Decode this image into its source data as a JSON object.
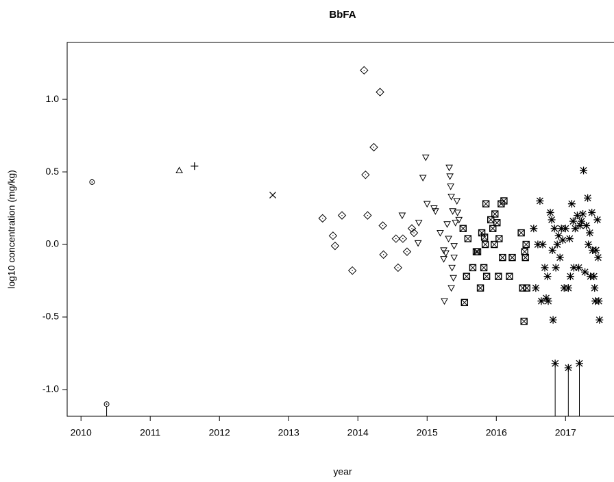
{
  "chart_data": {
    "type": "scatter",
    "title": "BbFA",
    "x_label": "year",
    "y_label": "log10 concentration (mg/kg)",
    "xlim": [
      2009.8,
      2017.7
    ],
    "ylim": [
      -1.184,
      1.392
    ],
    "xticks": [
      2010,
      2011,
      2012,
      2013,
      2014,
      2015,
      2016,
      2017
    ],
    "yticks": [
      {
        "value": -1,
        "label": "-1.0"
      },
      -0.5,
      {
        "value": 0,
        "label": "0.0"
      },
      0.5,
      {
        "value": 1,
        "label": "1.0"
      }
    ],
    "color": "#000000",
    "series": [
      {
        "symbol": "circle-dot",
        "x": [
          2010.16
        ],
        "values": [
          0.43
        ]
      },
      {
        "symbol": "circle-dot",
        "drop_line": true,
        "x": [
          2010.37
        ],
        "values": [
          -1.1
        ]
      },
      {
        "symbol": "triangle",
        "x": [
          2011.42
        ],
        "values": [
          0.51
        ]
      },
      {
        "symbol": "plus",
        "x": [
          2011.64
        ],
        "values": [
          0.54
        ]
      },
      {
        "symbol": "cross",
        "x": [
          2012.77
        ],
        "values": [
          0.34
        ]
      },
      {
        "symbol": "diamond",
        "x": [
          2013.49,
          2013.64,
          2013.67,
          2013.77,
          2013.92,
          2014.09,
          2014.11,
          2014.14,
          2014.23,
          2014.32,
          2014.36,
          2014.37,
          2014.55,
          2014.58,
          2014.65,
          2014.71,
          2014.78,
          2014.81
        ],
        "values": [
          0.18,
          0.06,
          -0.01,
          0.2,
          -0.18,
          1.2,
          0.48,
          0.2,
          0.67,
          1.05,
          0.13,
          -0.07,
          0.04,
          -0.16,
          0.04,
          -0.05,
          0.11,
          0.08
        ]
      },
      {
        "symbol": "triangle-down",
        "x": [
          2014.64,
          2014.87,
          2014.88,
          2014.94,
          2014.98,
          2015.0,
          2015.1,
          2015.12,
          2015.19,
          2015.24,
          2015.24,
          2015.25,
          2015.27,
          2015.29,
          2015.31,
          2015.32,
          2015.33,
          2015.34,
          2015.35,
          2015.36,
          2015.37,
          2015.39,
          2015.39,
          2015.41,
          2015.43,
          2015.44,
          2015.46,
          2015.35,
          2015.38
        ],
        "values": [
          0.2,
          0.01,
          0.15,
          0.46,
          0.6,
          0.28,
          0.25,
          0.23,
          0.08,
          -0.04,
          -0.1,
          -0.39,
          -0.06,
          0.14,
          0.04,
          0.53,
          0.47,
          0.4,
          0.33,
          -0.16,
          0.23,
          -0.01,
          -0.09,
          0.15,
          0.3,
          0.22,
          0.17,
          -0.3,
          -0.23
        ]
      },
      {
        "symbol": "square-x",
        "x": [
          2015.52,
          2015.54,
          2015.57,
          2015.59,
          2015.66,
          2015.71,
          2015.73,
          2015.77,
          2015.79,
          2015.82,
          2015.83,
          2015.84,
          2015.85,
          2015.86,
          2015.92,
          2015.95,
          2015.97,
          2015.98,
          2016.01,
          2016.03,
          2016.04,
          2016.07,
          2016.09,
          2016.11,
          2016.19,
          2016.23,
          2016.36,
          2016.38,
          2016.4,
          2016.41,
          2016.42,
          2016.43,
          2016.44
        ],
        "values": [
          0.11,
          -0.4,
          -0.22,
          0.04,
          -0.16,
          -0.05,
          -0.05,
          -0.3,
          0.08,
          -0.16,
          0.05,
          0.0,
          0.28,
          -0.22,
          0.17,
          0.11,
          0.0,
          0.21,
          0.15,
          -0.22,
          0.04,
          0.28,
          -0.09,
          0.3,
          -0.22,
          -0.09,
          0.08,
          -0.3,
          -0.53,
          -0.05,
          -0.09,
          0.0,
          -0.3
        ]
      },
      {
        "symbol": "asterisk",
        "x": [
          2016.54,
          2016.57,
          2016.6,
          2016.63,
          2016.65,
          2016.67,
          2016.7,
          2016.72,
          2016.74,
          2016.75,
          2016.78,
          2016.8,
          2016.81,
          2016.82,
          2016.84,
          2016.86,
          2016.88,
          2016.9,
          2016.92,
          2016.94,
          2016.96,
          2016.98,
          2017.0,
          2017.04,
          2017.06,
          2017.07,
          2017.09,
          2017.11,
          2017.12,
          2017.14,
          2017.17,
          2017.19,
          2017.21,
          2017.23,
          2017.25,
          2017.26,
          2017.28,
          2017.3,
          2017.32,
          2017.33,
          2017.35,
          2017.36,
          2017.38,
          2017.39,
          2017.41,
          2017.42,
          2017.43,
          2017.44,
          2017.46,
          2017.47,
          2017.48,
          2017.49
        ],
        "values": [
          0.11,
          -0.3,
          0.0,
          0.3,
          -0.39,
          0.0,
          -0.16,
          -0.37,
          -0.22,
          -0.39,
          0.22,
          0.17,
          -0.04,
          -0.52,
          0.11,
          -0.16,
          0.0,
          0.06,
          -0.09,
          0.11,
          0.03,
          -0.3,
          0.11,
          -0.3,
          0.04,
          -0.22,
          0.28,
          0.16,
          -0.16,
          0.11,
          0.2,
          -0.16,
          0.13,
          0.16,
          0.21,
          0.51,
          -0.19,
          0.13,
          0.32,
          0.0,
          0.08,
          -0.22,
          0.22,
          -0.04,
          -0.22,
          -0.3,
          -0.39,
          -0.04,
          0.17,
          -0.09,
          -0.39,
          -0.52
        ]
      },
      {
        "symbol": "asterisk",
        "drop_line": true,
        "x": [
          2016.85,
          2017.04,
          2017.2
        ],
        "values": [
          -0.82,
          -0.85,
          -0.82
        ]
      }
    ]
  }
}
